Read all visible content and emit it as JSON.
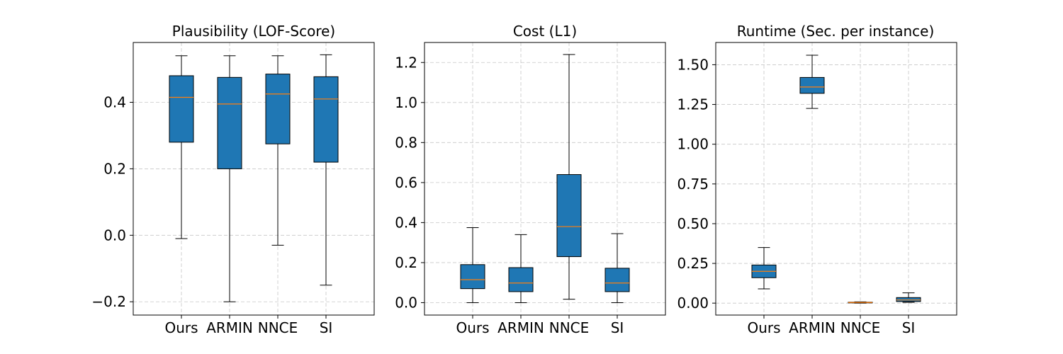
{
  "chart_data": [
    {
      "type": "box",
      "title": "Plausibility (LOF-Score)",
      "categories": [
        "Ours",
        "ARMIN",
        "NNCE",
        "SI"
      ],
      "boxes": [
        {
          "whislo": -0.01,
          "q1": 0.28,
          "med": 0.415,
          "q3": 0.48,
          "whishi": 0.54
        },
        {
          "whislo": -0.2,
          "q1": 0.2,
          "med": 0.395,
          "q3": 0.475,
          "whishi": 0.54
        },
        {
          "whislo": -0.03,
          "q1": 0.275,
          "med": 0.425,
          "q3": 0.485,
          "whishi": 0.54
        },
        {
          "whislo": -0.15,
          "q1": 0.22,
          "med": 0.41,
          "q3": 0.477,
          "whishi": 0.543
        }
      ],
      "ylim": [
        -0.24,
        0.58
      ],
      "yticks": [
        -0.2,
        0.0,
        0.2,
        0.4
      ],
      "ytick_labels": [
        "−0.2",
        "0.0",
        "0.2",
        "0.4"
      ],
      "grid": true
    },
    {
      "type": "box",
      "title": "Cost (L1)",
      "categories": [
        "Ours",
        "ARMIN",
        "NNCE",
        "SI"
      ],
      "boxes": [
        {
          "whislo": 0.0,
          "q1": 0.07,
          "med": 0.115,
          "q3": 0.19,
          "whishi": 0.375
        },
        {
          "whislo": 0.0,
          "q1": 0.055,
          "med": 0.098,
          "q3": 0.175,
          "whishi": 0.34
        },
        {
          "whislo": 0.017,
          "q1": 0.23,
          "med": 0.38,
          "q3": 0.64,
          "whishi": 1.24
        },
        {
          "whislo": 0.0,
          "q1": 0.055,
          "med": 0.098,
          "q3": 0.172,
          "whishi": 0.345
        }
      ],
      "ylim": [
        -0.062,
        1.3
      ],
      "yticks": [
        0.0,
        0.2,
        0.4,
        0.6,
        0.8,
        1.0,
        1.2
      ],
      "ytick_labels": [
        "0.0",
        "0.2",
        "0.4",
        "0.6",
        "0.8",
        "1.0",
        "1.2"
      ],
      "grid": true
    },
    {
      "type": "box",
      "title": "Runtime (Sec. per instance)",
      "categories": [
        "Ours",
        "ARMIN",
        "NNCE",
        "SI"
      ],
      "boxes": [
        {
          "whislo": 0.09,
          "q1": 0.16,
          "med": 0.2,
          "q3": 0.24,
          "whishi": 0.35
        },
        {
          "whislo": 1.225,
          "q1": 1.32,
          "med": 1.36,
          "q3": 1.42,
          "whishi": 1.56
        },
        {
          "whislo": 0.0,
          "q1": 0.002,
          "med": 0.004,
          "q3": 0.006,
          "whishi": 0.008
        },
        {
          "whislo": 0.005,
          "q1": 0.01,
          "med": 0.02,
          "q3": 0.035,
          "whishi": 0.065
        }
      ],
      "ylim": [
        -0.075,
        1.64
      ],
      "yticks": [
        0.0,
        0.25,
        0.5,
        0.75,
        1.0,
        1.25,
        1.5
      ],
      "ytick_labels": [
        "0.00",
        "0.25",
        "0.50",
        "0.75",
        "1.00",
        "1.25",
        "1.50"
      ],
      "grid": true
    }
  ],
  "colors": {
    "box_fill": "#1f77b4",
    "median": "#ff7f0e",
    "edge": "#000000"
  }
}
